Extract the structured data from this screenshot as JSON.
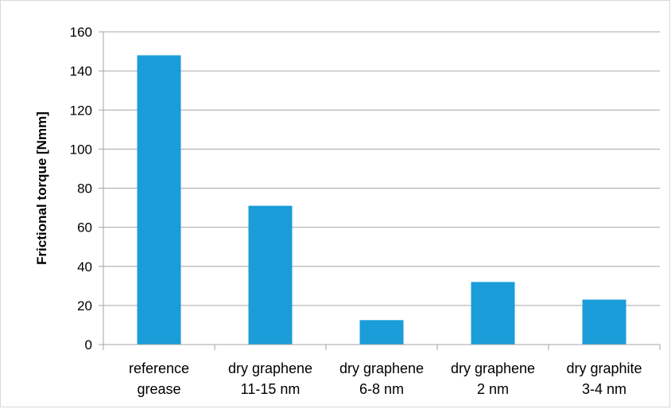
{
  "chart_data": {
    "type": "bar",
    "categories": [
      [
        "reference",
        "grease"
      ],
      [
        "dry graphene",
        "11-15 nm"
      ],
      [
        "dry graphene",
        "6-8 nm"
      ],
      [
        "dry graphene",
        "2 nm"
      ],
      [
        "dry graphite",
        "3-4 nm"
      ]
    ],
    "values": [
      148,
      71,
      12.5,
      32,
      23
    ],
    "title": "",
    "xlabel": "",
    "ylabel": "Frictional torque [Nmm]",
    "ylim": [
      0,
      160
    ],
    "yticks": [
      0,
      20,
      40,
      60,
      80,
      100,
      120,
      140,
      160
    ],
    "grid": true,
    "legend": "none",
    "bar_color": "#1a9dd9",
    "grid_color": "#a6a6a6",
    "axis_color": "#a6a6a6"
  }
}
